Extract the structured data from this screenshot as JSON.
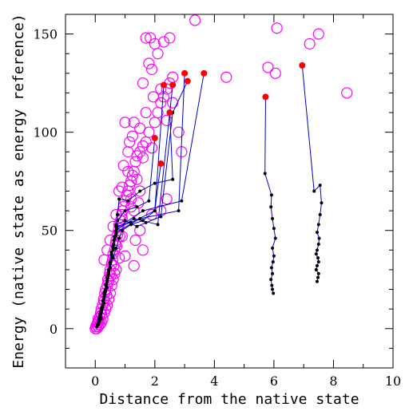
{
  "chart_data": {
    "type": "scatter",
    "xlabel": "Distance from the native state",
    "ylabel": "Energy (native state as energy reference)",
    "xlim": [
      -1,
      10
    ],
    "ylim": [
      -20,
      160
    ],
    "xticks": [
      0,
      2,
      4,
      6,
      8,
      10
    ],
    "yticks": [
      0,
      50,
      100,
      150
    ],
    "grid": false,
    "colors": {
      "open_circles": "#ff00ff",
      "trajectory_line": "#0000cc",
      "trajectory_points": "#000000",
      "endpoints": "#ff0000"
    },
    "open_circles": [
      [
        0.0,
        0
      ],
      [
        0.02,
        1
      ],
      [
        0.05,
        2
      ],
      [
        0.08,
        3
      ],
      [
        0.1,
        5
      ],
      [
        0.12,
        4
      ],
      [
        0.15,
        6
      ],
      [
        0.18,
        8
      ],
      [
        0.2,
        10
      ],
      [
        0.22,
        7
      ],
      [
        0.25,
        12
      ],
      [
        0.28,
        15
      ],
      [
        0.3,
        14
      ],
      [
        0.32,
        18
      ],
      [
        0.35,
        20
      ],
      [
        0.38,
        17
      ],
      [
        0.4,
        22
      ],
      [
        0.42,
        25
      ],
      [
        0.45,
        24
      ],
      [
        0.48,
        28
      ],
      [
        0.5,
        30
      ],
      [
        0.52,
        27
      ],
      [
        0.55,
        33
      ],
      [
        0.58,
        35
      ],
      [
        0.6,
        38
      ],
      [
        0.62,
        32
      ],
      [
        0.65,
        40
      ],
      [
        0.68,
        43
      ],
      [
        0.7,
        45
      ],
      [
        0.72,
        42
      ],
      [
        0.75,
        48
      ],
      [
        0.78,
        50
      ],
      [
        0.8,
        53
      ],
      [
        0.82,
        47
      ],
      [
        0.85,
        55
      ],
      [
        0.88,
        58
      ],
      [
        0.9,
        56
      ],
      [
        0.92,
        60
      ],
      [
        0.95,
        62
      ],
      [
        1.0,
        65
      ],
      [
        1.05,
        68
      ],
      [
        1.1,
        70
      ],
      [
        1.15,
        73
      ],
      [
        1.2,
        75
      ],
      [
        1.25,
        78
      ],
      [
        1.3,
        80
      ],
      [
        1.35,
        85
      ],
      [
        1.4,
        88
      ],
      [
        1.5,
        90
      ],
      [
        1.6,
        93
      ],
      [
        1.7,
        95
      ],
      [
        1.8,
        100
      ],
      [
        1.9,
        92
      ],
      [
        2.0,
        105
      ],
      [
        2.1,
        110
      ],
      [
        2.2,
        115
      ],
      [
        2.3,
        118
      ],
      [
        2.4,
        122
      ],
      [
        2.5,
        125
      ],
      [
        2.6,
        128
      ],
      [
        0.3,
        35
      ],
      [
        0.5,
        45
      ],
      [
        0.7,
        58
      ],
      [
        0.9,
        72
      ],
      [
        1.1,
        80
      ],
      [
        1.3,
        60
      ],
      [
        1.5,
        50
      ],
      [
        1.2,
        62
      ],
      [
        0.6,
        52
      ],
      [
        0.4,
        40
      ],
      [
        1.0,
        105
      ],
      [
        1.3,
        105
      ],
      [
        1.6,
        125
      ],
      [
        1.8,
        135
      ],
      [
        1.9,
        132
      ],
      [
        1.85,
        148
      ],
      [
        2.0,
        145
      ],
      [
        2.1,
        140
      ],
      [
        2.3,
        146
      ],
      [
        2.5,
        148
      ],
      [
        1.7,
        148
      ],
      [
        2.6,
        115
      ],
      [
        2.8,
        100
      ],
      [
        2.9,
        90
      ],
      [
        2.4,
        106
      ],
      [
        1.95,
        118
      ],
      [
        2.2,
        122
      ],
      [
        1.6,
        87
      ],
      [
        1.4,
        76
      ],
      [
        1.9,
        58
      ],
      [
        2.4,
        66
      ],
      [
        2.2,
        60
      ],
      [
        1.5,
        70
      ],
      [
        1.1,
        90
      ],
      [
        0.8,
        70
      ],
      [
        0.95,
        83
      ],
      [
        1.15,
        95
      ],
      [
        1.25,
        98
      ],
      [
        1.5,
        102
      ],
      [
        1.7,
        110
      ],
      [
        0.9,
        47
      ],
      [
        1.0,
        37
      ],
      [
        1.3,
        32
      ],
      [
        1.6,
        40
      ],
      [
        1.35,
        45
      ],
      [
        0.65,
        28
      ],
      [
        0.55,
        22
      ],
      [
        0.45,
        15
      ],
      [
        0.35,
        10
      ],
      [
        0.25,
        5
      ],
      [
        0.15,
        2
      ],
      [
        0.1,
        1
      ],
      [
        0.05,
        0
      ],
      [
        0.2,
        3
      ],
      [
        0.3,
        8
      ],
      [
        0.4,
        12
      ],
      [
        0.5,
        18
      ],
      [
        0.6,
        25
      ],
      [
        0.7,
        30
      ],
      [
        0.8,
        36
      ],
      [
        3.35,
        157
      ],
      [
        4.4,
        128
      ],
      [
        5.8,
        133
      ],
      [
        6.05,
        130
      ],
      [
        6.1,
        153
      ],
      [
        7.5,
        150
      ],
      [
        7.2,
        145
      ],
      [
        8.45,
        120
      ],
      [
        1.2,
        66
      ],
      [
        1.45,
        64
      ]
    ],
    "trajectories": [
      {
        "points": [
          [
            0.05,
            1
          ],
          [
            0.1,
            3
          ],
          [
            0.15,
            6
          ],
          [
            0.2,
            9
          ],
          [
            0.25,
            12
          ],
          [
            0.3,
            16
          ],
          [
            0.35,
            20
          ],
          [
            0.4,
            24
          ],
          [
            0.45,
            28
          ],
          [
            0.5,
            33
          ],
          [
            0.55,
            37
          ],
          [
            0.6,
            42
          ],
          [
            0.65,
            47
          ],
          [
            0.7,
            52
          ],
          [
            0.75,
            55
          ],
          [
            1.0,
            60
          ],
          [
            1.4,
            62
          ],
          [
            1.8,
            65
          ],
          [
            2.0,
            97
          ]
        ]
      },
      {
        "points": [
          [
            0.08,
            2
          ],
          [
            0.12,
            5
          ],
          [
            0.18,
            8
          ],
          [
            0.22,
            11
          ],
          [
            0.28,
            15
          ],
          [
            0.32,
            19
          ],
          [
            0.38,
            23
          ],
          [
            0.42,
            27
          ],
          [
            0.5,
            31
          ],
          [
            0.6,
            36
          ],
          [
            0.7,
            41
          ],
          [
            0.8,
            46
          ],
          [
            0.9,
            50
          ],
          [
            1.2,
            53
          ],
          [
            1.6,
            55
          ],
          [
            2.0,
            60
          ],
          [
            2.2,
            84
          ]
        ]
      },
      {
        "points": [
          [
            0.1,
            3
          ],
          [
            0.2,
            10
          ],
          [
            0.3,
            18
          ],
          [
            0.4,
            26
          ],
          [
            0.5,
            34
          ],
          [
            0.6,
            42
          ],
          [
            0.7,
            48
          ],
          [
            0.75,
            58
          ],
          [
            0.8,
            66
          ],
          [
            1.1,
            65
          ],
          [
            1.5,
            70
          ],
          [
            2.0,
            74
          ],
          [
            2.6,
            76
          ],
          [
            2.5,
            110
          ]
        ]
      },
      {
        "points": [
          [
            0.15,
            4
          ],
          [
            0.25,
            11
          ],
          [
            0.35,
            19
          ],
          [
            0.45,
            29
          ],
          [
            0.55,
            39
          ],
          [
            0.65,
            46
          ],
          [
            0.7,
            53
          ],
          [
            1.0,
            55
          ],
          [
            1.4,
            52
          ],
          [
            1.7,
            54
          ],
          [
            2.2,
            57
          ],
          [
            2.6,
            110
          ],
          [
            3.1,
            126
          ]
        ]
      },
      {
        "points": [
          [
            0.2,
            5
          ],
          [
            0.3,
            13
          ],
          [
            0.4,
            21
          ],
          [
            0.5,
            31
          ],
          [
            0.6,
            40
          ],
          [
            0.68,
            47
          ],
          [
            0.72,
            52
          ],
          [
            1.2,
            54
          ],
          [
            2.0,
            60
          ],
          [
            2.3,
            124
          ]
        ]
      },
      {
        "points": [
          [
            0.05,
            1
          ],
          [
            0.15,
            7
          ],
          [
            0.25,
            14
          ],
          [
            0.35,
            22
          ],
          [
            0.45,
            30
          ],
          [
            0.55,
            38
          ],
          [
            0.62,
            45
          ],
          [
            0.7,
            50
          ],
          [
            1.3,
            56
          ],
          [
            2.1,
            53
          ],
          [
            2.6,
            124
          ]
        ]
      },
      {
        "points": [
          [
            0.1,
            2
          ],
          [
            0.2,
            9
          ],
          [
            0.3,
            17
          ],
          [
            0.4,
            25
          ],
          [
            0.5,
            33
          ],
          [
            0.6,
            41
          ],
          [
            0.7,
            49
          ],
          [
            1.5,
            56
          ],
          [
            2.8,
            60
          ],
          [
            3.0,
            130
          ]
        ]
      },
      {
        "points": [
          [
            0.12,
            3
          ],
          [
            0.22,
            10
          ],
          [
            0.32,
            18
          ],
          [
            0.42,
            26
          ],
          [
            0.52,
            34
          ],
          [
            0.62,
            43
          ],
          [
            0.72,
            51
          ],
          [
            1.6,
            60
          ],
          [
            2.9,
            65
          ],
          [
            3.65,
            130
          ]
        ]
      },
      {
        "points": [
          [
            5.98,
            18
          ],
          [
            5.95,
            20
          ],
          [
            5.93,
            22
          ],
          [
            5.9,
            25
          ],
          [
            5.95,
            28
          ],
          [
            5.92,
            31
          ],
          [
            5.97,
            34
          ],
          [
            6.0,
            37
          ],
          [
            5.95,
            41
          ],
          [
            6.05,
            46
          ],
          [
            6.0,
            51
          ],
          [
            5.95,
            56
          ],
          [
            5.9,
            62
          ],
          [
            5.92,
            68
          ],
          [
            5.7,
            79
          ],
          [
            5.72,
            118
          ]
        ]
      },
      {
        "points": [
          [
            7.45,
            24
          ],
          [
            7.48,
            26
          ],
          [
            7.5,
            28
          ],
          [
            7.42,
            30
          ],
          [
            7.45,
            32
          ],
          [
            7.5,
            34
          ],
          [
            7.48,
            36
          ],
          [
            7.42,
            38
          ],
          [
            7.45,
            40
          ],
          [
            7.5,
            43
          ],
          [
            7.52,
            46
          ],
          [
            7.45,
            49
          ],
          [
            7.5,
            53
          ],
          [
            7.55,
            58
          ],
          [
            7.6,
            64
          ],
          [
            7.55,
            73
          ],
          [
            7.35,
            70
          ],
          [
            6.95,
            134
          ]
        ]
      }
    ]
  }
}
